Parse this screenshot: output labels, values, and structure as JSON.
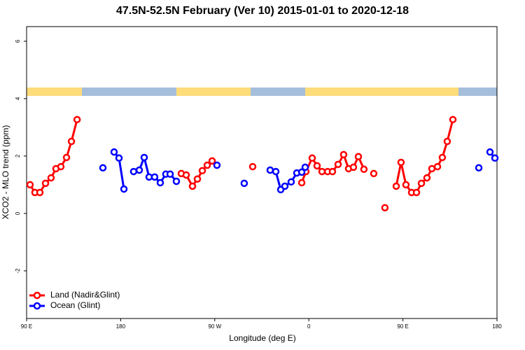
{
  "chart_data": {
    "type": "line",
    "title": "47.5N-52.5N February (Ver 10)   2015-01-01 to 2020-12-18",
    "x_label": "Longitude (deg E)",
    "y_label": "XCO2 - MLO trend (ppm)",
    "xlim": [
      90,
      540
    ],
    "ylim": [
      -3.66,
      6.51
    ],
    "xticks": [
      {
        "value": 90,
        "label": "90 E"
      },
      {
        "value": 180,
        "label": "180"
      },
      {
        "value": 270,
        "label": "90 W"
      },
      {
        "value": 360,
        "label": "0"
      },
      {
        "value": 450,
        "label": "90 E"
      },
      {
        "value": 540,
        "label": "180"
      }
    ],
    "yticks": [
      -2,
      0,
      2,
      4,
      6
    ],
    "legend": "bottom-left",
    "series": [
      {
        "name": "Land (Nadir&Glint)",
        "color": "#ff0000",
        "x": [
          93.3,
          98.0,
          102.7,
          108.1,
          113.4,
          118.1,
          122.8,
          128.2,
          132.9,
          138.3,
          null,
          238.0,
          242.7,
          248.7,
          253.4,
          258.1,
          262.8,
          267.5,
          null,
          306.3,
          null,
          353.2,
          357.2,
          363.2,
          367.9,
          372.6,
          378.0,
          382.6,
          388.0,
          393.3,
          398.0,
          402.7,
          407.4,
          412.7,
          null,
          422.1,
          null,
          432.8,
          null,
          443.6,
          448.2,
          452.9,
          458.3,
          463.0,
          467.7,
          473.0,
          477.7,
          483.1,
          487.7,
          492.4,
          497.8
        ],
        "values": [
          1.0,
          0.73,
          0.73,
          1.05,
          1.24,
          1.56,
          1.63,
          1.95,
          2.51,
          3.27,
          null,
          1.39,
          1.34,
          0.95,
          1.2,
          1.49,
          1.68,
          1.83,
          null,
          1.63,
          null,
          1.07,
          1.46,
          1.93,
          1.66,
          1.46,
          1.46,
          1.46,
          1.71,
          2.05,
          1.56,
          1.61,
          1.98,
          1.54,
          null,
          1.39,
          null,
          0.2,
          null,
          0.95,
          1.78,
          1.0,
          0.73,
          0.73,
          1.05,
          1.24,
          1.56,
          1.63,
          1.95,
          2.51,
          3.27
        ]
      },
      {
        "name": "Ocean (Glint)",
        "color": "#0000ff",
        "x": [
          163.0,
          null,
          173.7,
          178.4,
          183.1,
          null,
          192.4,
          197.8,
          202.5,
          207.2,
          212.5,
          217.9,
          223.2,
          227.3,
          233.3,
          null,
          272.1,
          null,
          298.2,
          null,
          323.0,
          328.4,
          333.1,
          337.1,
          343.1,
          348.5,
          353.2,
          356.5,
          null,
          522.6,
          null,
          533.3,
          538.0
        ],
        "values": [
          1.59,
          null,
          2.14,
          1.93,
          0.85,
          null,
          1.46,
          1.51,
          1.95,
          1.27,
          1.27,
          1.07,
          1.37,
          1.37,
          1.12,
          null,
          1.68,
          null,
          1.05,
          null,
          1.51,
          1.46,
          0.83,
          0.95,
          1.1,
          1.41,
          1.44,
          1.61,
          null,
          1.59,
          null,
          2.14,
          1.93
        ]
      }
    ]
  }
}
